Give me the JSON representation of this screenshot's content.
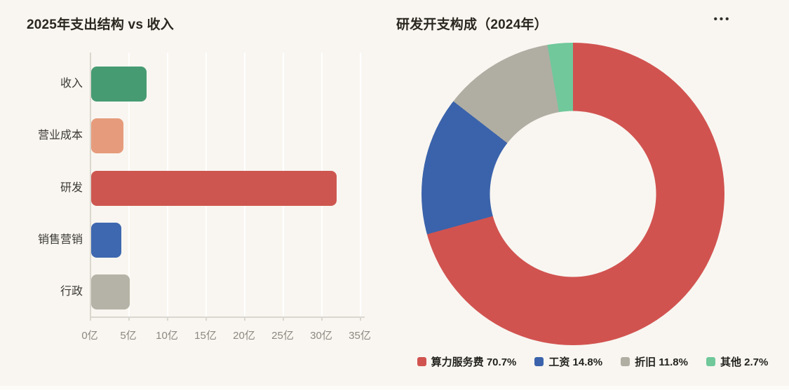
{
  "page": {
    "background": "#F9F6F1"
  },
  "menu": {
    "more_icon": "•••"
  },
  "chart_data": [
    {
      "type": "bar",
      "orientation": "horizontal",
      "title": "2025年支出结构 vs 收入",
      "categories": [
        "收入",
        "营业成本",
        "研发",
        "销售营销",
        "行政"
      ],
      "values": [
        7.2,
        4.2,
        31.8,
        3.9,
        5.0
      ],
      "unit": "亿",
      "colors": [
        "#479B73",
        "#E69C7C",
        "#CD5750",
        "#3E68B0",
        "#B5B3A7"
      ],
      "x_ticks": [
        "0亿",
        "5亿",
        "10亿",
        "15亿",
        "20亿",
        "25亿",
        "30亿",
        "35亿"
      ],
      "xlim": [
        0,
        35
      ],
      "grid": true,
      "gridline_color": "rgba(255,255,255,0.95)",
      "axis_color": "#DAD7CF",
      "category_label_color": "#3C3A35",
      "tick_label_color": "#8B8880"
    },
    {
      "type": "pie",
      "subtype": "donut",
      "title": "研发开支构成（2024年）",
      "labels": [
        "算力服务费",
        "工资",
        "折旧",
        "其他"
      ],
      "values": [
        70.7,
        14.8,
        11.8,
        2.7
      ],
      "colors": [
        "#D15350",
        "#3B63AB",
        "#B0AEA3",
        "#70C89B"
      ],
      "inner_radius_ratio": 0.55,
      "start_angle": "top",
      "direction": "clockwise",
      "legend_position": "bottom"
    }
  ]
}
